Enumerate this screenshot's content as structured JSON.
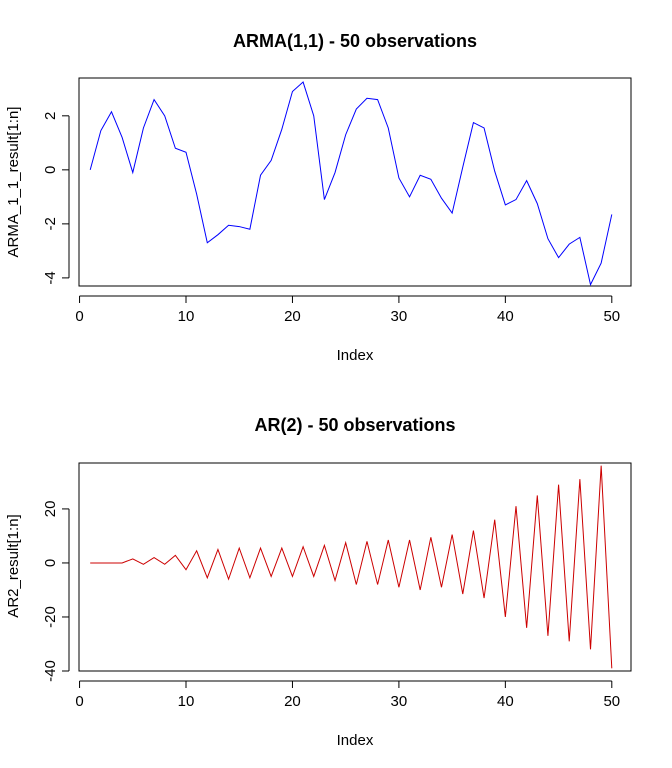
{
  "chart_data": [
    {
      "type": "line",
      "title": "ARMA(1,1) - 50 observations",
      "xlabel": "Index",
      "ylabel": "ARMA_1_1_result[1:n]",
      "xlim": [
        1,
        50
      ],
      "ylim": [
        -4.3,
        3.4
      ],
      "xticks": [
        0,
        10,
        20,
        30,
        40,
        50
      ],
      "yticks": [
        -4,
        -2,
        0,
        2
      ],
      "color": "#0000ff",
      "x": [
        1,
        2,
        3,
        4,
        5,
        6,
        7,
        8,
        9,
        10,
        11,
        12,
        13,
        14,
        15,
        16,
        17,
        18,
        19,
        20,
        21,
        22,
        23,
        24,
        25,
        26,
        27,
        28,
        29,
        30,
        31,
        32,
        33,
        34,
        35,
        36,
        37,
        38,
        39,
        40,
        41,
        42,
        43,
        44,
        45,
        46,
        47,
        48,
        49,
        50
      ],
      "values": [
        0.0,
        1.45,
        2.15,
        1.2,
        -0.1,
        1.55,
        2.6,
        2.0,
        0.8,
        0.65,
        -0.9,
        -2.7,
        -2.4,
        -2.05,
        -2.1,
        -2.2,
        -0.2,
        0.35,
        1.5,
        2.9,
        3.25,
        2.0,
        -1.1,
        -0.1,
        1.3,
        2.25,
        2.65,
        2.6,
        1.55,
        -0.3,
        -1.0,
        -0.2,
        -0.35,
        -1.05,
        -1.6,
        0.1,
        1.75,
        1.55,
        -0.05,
        -1.3,
        -1.1,
        -0.4,
        -1.25,
        -2.55,
        -3.25,
        -2.75,
        -2.5,
        -4.25,
        -3.45,
        -1.65
      ]
    },
    {
      "type": "line",
      "title": "AR(2) - 50 observations",
      "xlabel": "Index",
      "ylabel": "AR2_result[1:n]",
      "xlim": [
        1,
        50
      ],
      "ylim": [
        -40,
        37
      ],
      "xticks": [
        0,
        10,
        20,
        30,
        40,
        50
      ],
      "yticks": [
        -40,
        -20,
        0,
        20
      ],
      "color": "#cc0000",
      "x": [
        1,
        2,
        3,
        4,
        5,
        6,
        7,
        8,
        9,
        10,
        11,
        12,
        13,
        14,
        15,
        16,
        17,
        18,
        19,
        20,
        21,
        22,
        23,
        24,
        25,
        26,
        27,
        28,
        29,
        30,
        31,
        32,
        33,
        34,
        35,
        36,
        37,
        38,
        39,
        40,
        41,
        42,
        43,
        44,
        45,
        46,
        47,
        48,
        49,
        50
      ],
      "values": [
        0,
        0,
        0,
        0,
        1.5,
        -0.5,
        2,
        -0.5,
        2.8,
        -2.5,
        4.5,
        -5.5,
        5,
        -6,
        5.5,
        -5.5,
        5.5,
        -5,
        5.5,
        -5,
        6,
        -5,
        6.5,
        -6.5,
        7.5,
        -8,
        8,
        -8,
        8.5,
        -9,
        8.5,
        -10,
        9.5,
        -9,
        10.5,
        -11.5,
        12,
        -13,
        16,
        -20,
        21,
        -24,
        25,
        -27,
        29,
        -29,
        31,
        -32,
        36,
        -39
      ]
    }
  ]
}
